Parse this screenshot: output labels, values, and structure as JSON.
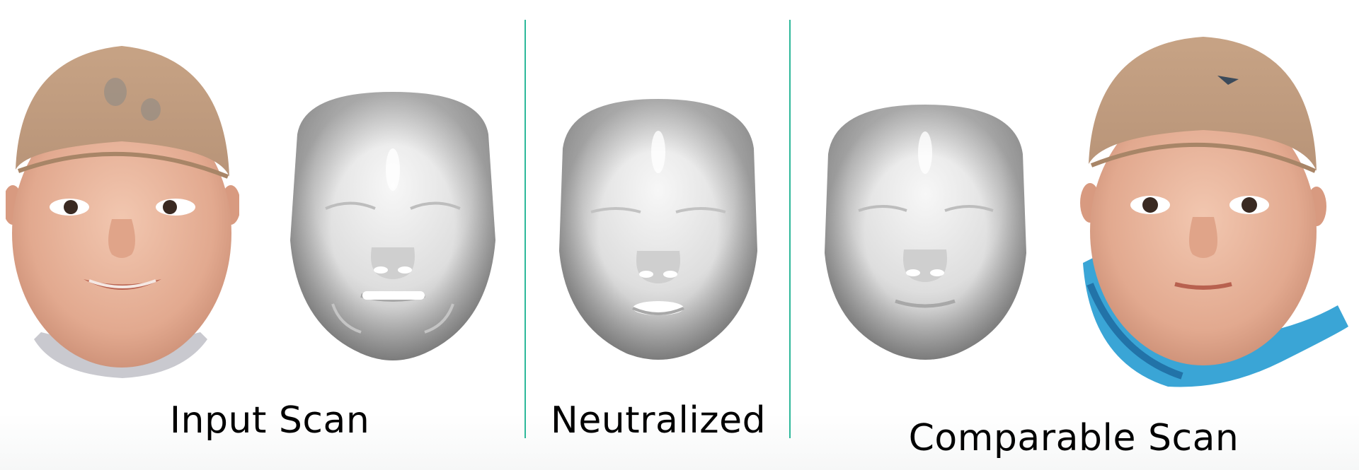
{
  "labels": {
    "input": "Input Scan",
    "neutralized": "Neutralized",
    "comparable": "Comparable Scan"
  },
  "colors": {
    "divider": "#2db89a",
    "skin": "#e7b59e",
    "cap": "#cda98d",
    "mesh": "#e6e6e6"
  },
  "icons": {
    "photo_face_1": "baby-face-photo-smiling",
    "mesh_face_1": "baby-face-mesh-expressive",
    "mesh_face_2": "baby-face-mesh-neutralized",
    "mesh_face_3": "baby-face-mesh-comparable",
    "photo_face_2": "baby-face-photo-neutral"
  }
}
